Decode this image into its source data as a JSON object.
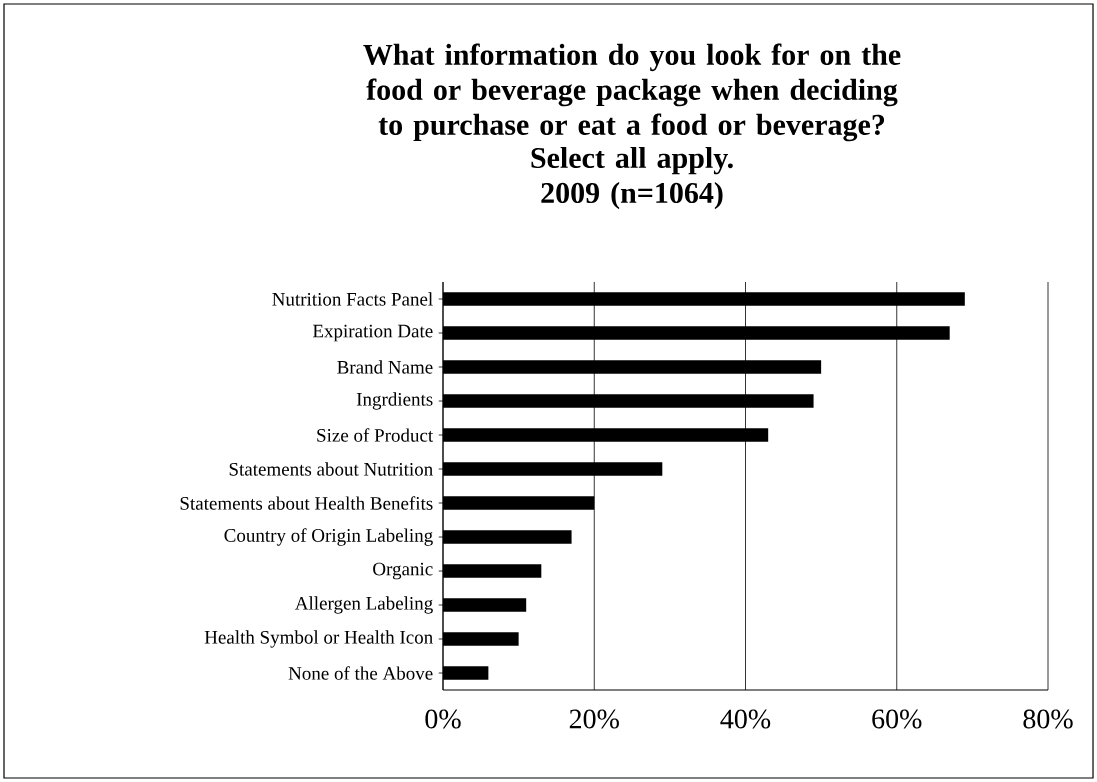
{
  "chart_data": {
    "type": "bar",
    "orientation": "horizontal",
    "title": "What information do you look for on the food or beverage package when deciding to purchase or eat a food or beverage?",
    "subtitle": "Select all apply. 2009 (n=1064)",
    "categories": [
      "Nutrition Facts Panel",
      "Expiration Date",
      "Brand Name",
      "Ingrdients",
      "Size of Product",
      "Statements about Nutrition",
      "Statements about Health Benefits",
      "Country of Origin Labeling",
      "Organic",
      "Allergen Labeling",
      "Health Symbol or Health Icon",
      "None of the Above"
    ],
    "values": [
      69,
      67,
      50,
      49,
      43,
      29,
      20,
      17,
      13,
      11,
      10,
      6
    ],
    "color": "#000000",
    "xlim": [
      0,
      80
    ],
    "xticks": [
      {
        "value": 0,
        "label": "0%"
      },
      {
        "value": 20,
        "label": "20%"
      },
      {
        "value": 40,
        "label": "40%"
      },
      {
        "value": 60,
        "label": "60%"
      },
      {
        "value": 80,
        "label": "80%"
      }
    ],
    "grid": "x"
  }
}
